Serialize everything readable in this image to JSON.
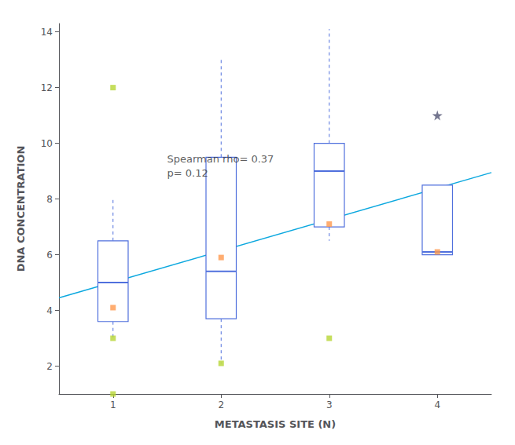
{
  "chart_data": {
    "type": "boxplot",
    "xlabel": "METASTASIS SITE (N)",
    "ylabel": "DNA CONCENTRATION",
    "xlim": [
      0.5,
      4.5
    ],
    "xticks": [
      1,
      2,
      3,
      4
    ],
    "ylim": [
      1.0,
      14.3
    ],
    "yticks": [
      2,
      4,
      6,
      8,
      10,
      12,
      14
    ],
    "grid": false,
    "series": [
      {
        "type": "boxplot",
        "x": [
          1,
          2,
          3,
          4
        ],
        "whisker_low": [
          3.0,
          2.1,
          6.5,
          6.0
        ],
        "q1": [
          3.6,
          3.7,
          7.0,
          6.0
        ],
        "median": [
          5.0,
          5.4,
          9.0,
          6.1
        ],
        "q3": [
          6.5,
          9.5,
          10.0,
          8.5
        ],
        "whisker_high": [
          8.0,
          13.0,
          14.1,
          8.5
        ]
      },
      {
        "type": "scatter",
        "marker": "square",
        "x": [
          1,
          1,
          1,
          2,
          3
        ],
        "values": [
          1.0,
          3.0,
          12.0,
          2.1,
          3.0
        ]
      },
      {
        "type": "scatter",
        "marker": "star",
        "x": [
          4
        ],
        "values": [
          11.0
        ]
      },
      {
        "type": "scatter",
        "marker": "square",
        "x": [
          1,
          2,
          3,
          4
        ],
        "values": [
          4.1,
          5.9,
          7.1,
          6.1
        ]
      },
      {
        "type": "line",
        "x": [
          0.5,
          4.5
        ],
        "values": [
          4.45,
          8.95
        ]
      }
    ],
    "annotations": [
      {
        "text": "Spearman rho= 0.37\np= 0.12",
        "x": 1.5,
        "y": 9.7
      }
    ]
  }
}
